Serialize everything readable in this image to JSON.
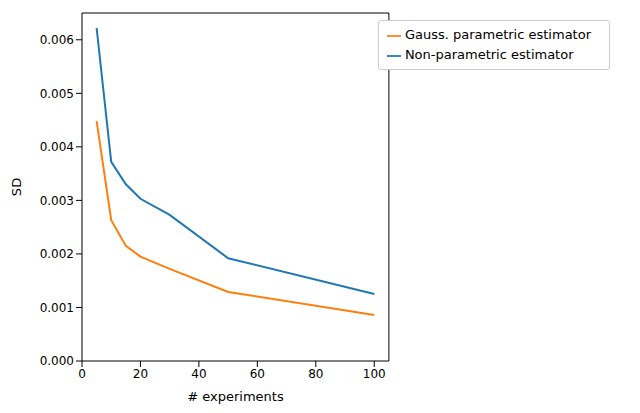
{
  "chart_data": {
    "type": "line",
    "x_label": "# experiments",
    "y_label": "SD",
    "x": [
      5,
      10,
      15,
      20,
      30,
      50,
      100
    ],
    "series": [
      {
        "name": "Non-parametric estimator",
        "color": "#1f77b4",
        "values": [
          0.00622,
          0.00372,
          0.0033,
          0.00303,
          0.00273,
          0.00192,
          0.00125
        ]
      },
      {
        "name": "Gauss. parametric estimator",
        "color": "#ff7f0e",
        "values": [
          0.00448,
          0.00263,
          0.00215,
          0.00195,
          0.00172,
          0.00129,
          0.00086
        ]
      }
    ],
    "xlim": [
      0,
      105
    ],
    "xticks": [
      0,
      20,
      40,
      60,
      80,
      100
    ],
    "ylim": [
      0,
      0.0065
    ],
    "yticks": [
      {
        "value": 0,
        "label": "0.000"
      },
      {
        "value": 0.001,
        "label": "0.001"
      },
      {
        "value": 0.002,
        "label": "0.002"
      },
      {
        "value": 0.003,
        "label": "0.003"
      },
      {
        "value": 0.004,
        "label": "0.004"
      },
      {
        "value": 0.005,
        "label": "0.005"
      },
      {
        "value": 0.006,
        "label": "0.006"
      }
    ],
    "legend": "upper right",
    "grid": false
  }
}
